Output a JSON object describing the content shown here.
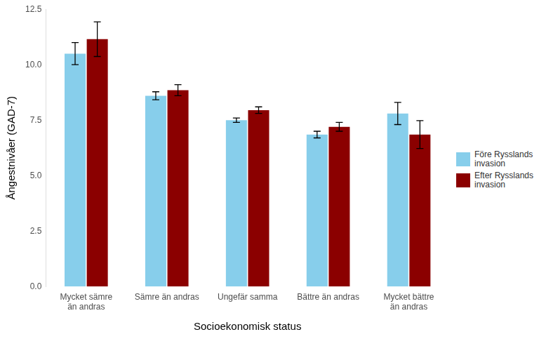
{
  "chart_data": {
    "type": "bar",
    "x_label": "Socioekonomisk status",
    "y_label": "Ångestnivåer (GAD-7)",
    "categories": [
      "Mycket sämre\nän andras",
      "Sämre än andras",
      "Ungefär samma",
      "Bättre än andras",
      "Mycket bättre\nän andras"
    ],
    "series": [
      {
        "name": "Före Rysslands invasion",
        "color": "#87ceeb",
        "values": [
          10.5,
          8.6,
          7.5,
          6.85,
          7.8
        ],
        "errors": [
          0.5,
          0.18,
          0.1,
          0.15,
          0.5
        ]
      },
      {
        "name": "Efter Rysslands invasion",
        "color": "#8b0000",
        "values": [
          11.15,
          8.85,
          7.95,
          7.2,
          6.85
        ],
        "errors": [
          0.78,
          0.25,
          0.15,
          0.2,
          0.63
        ]
      }
    ],
    "ylim": [
      0,
      12.5
    ],
    "yticks": [
      {
        "value": 0,
        "label": "0.0"
      },
      2.5,
      {
        "value": 5,
        "label": "5.0"
      },
      7.5,
      {
        "value": 10,
        "label": "10.0"
      },
      12.5
    ],
    "grid": false,
    "legend": "right"
  }
}
